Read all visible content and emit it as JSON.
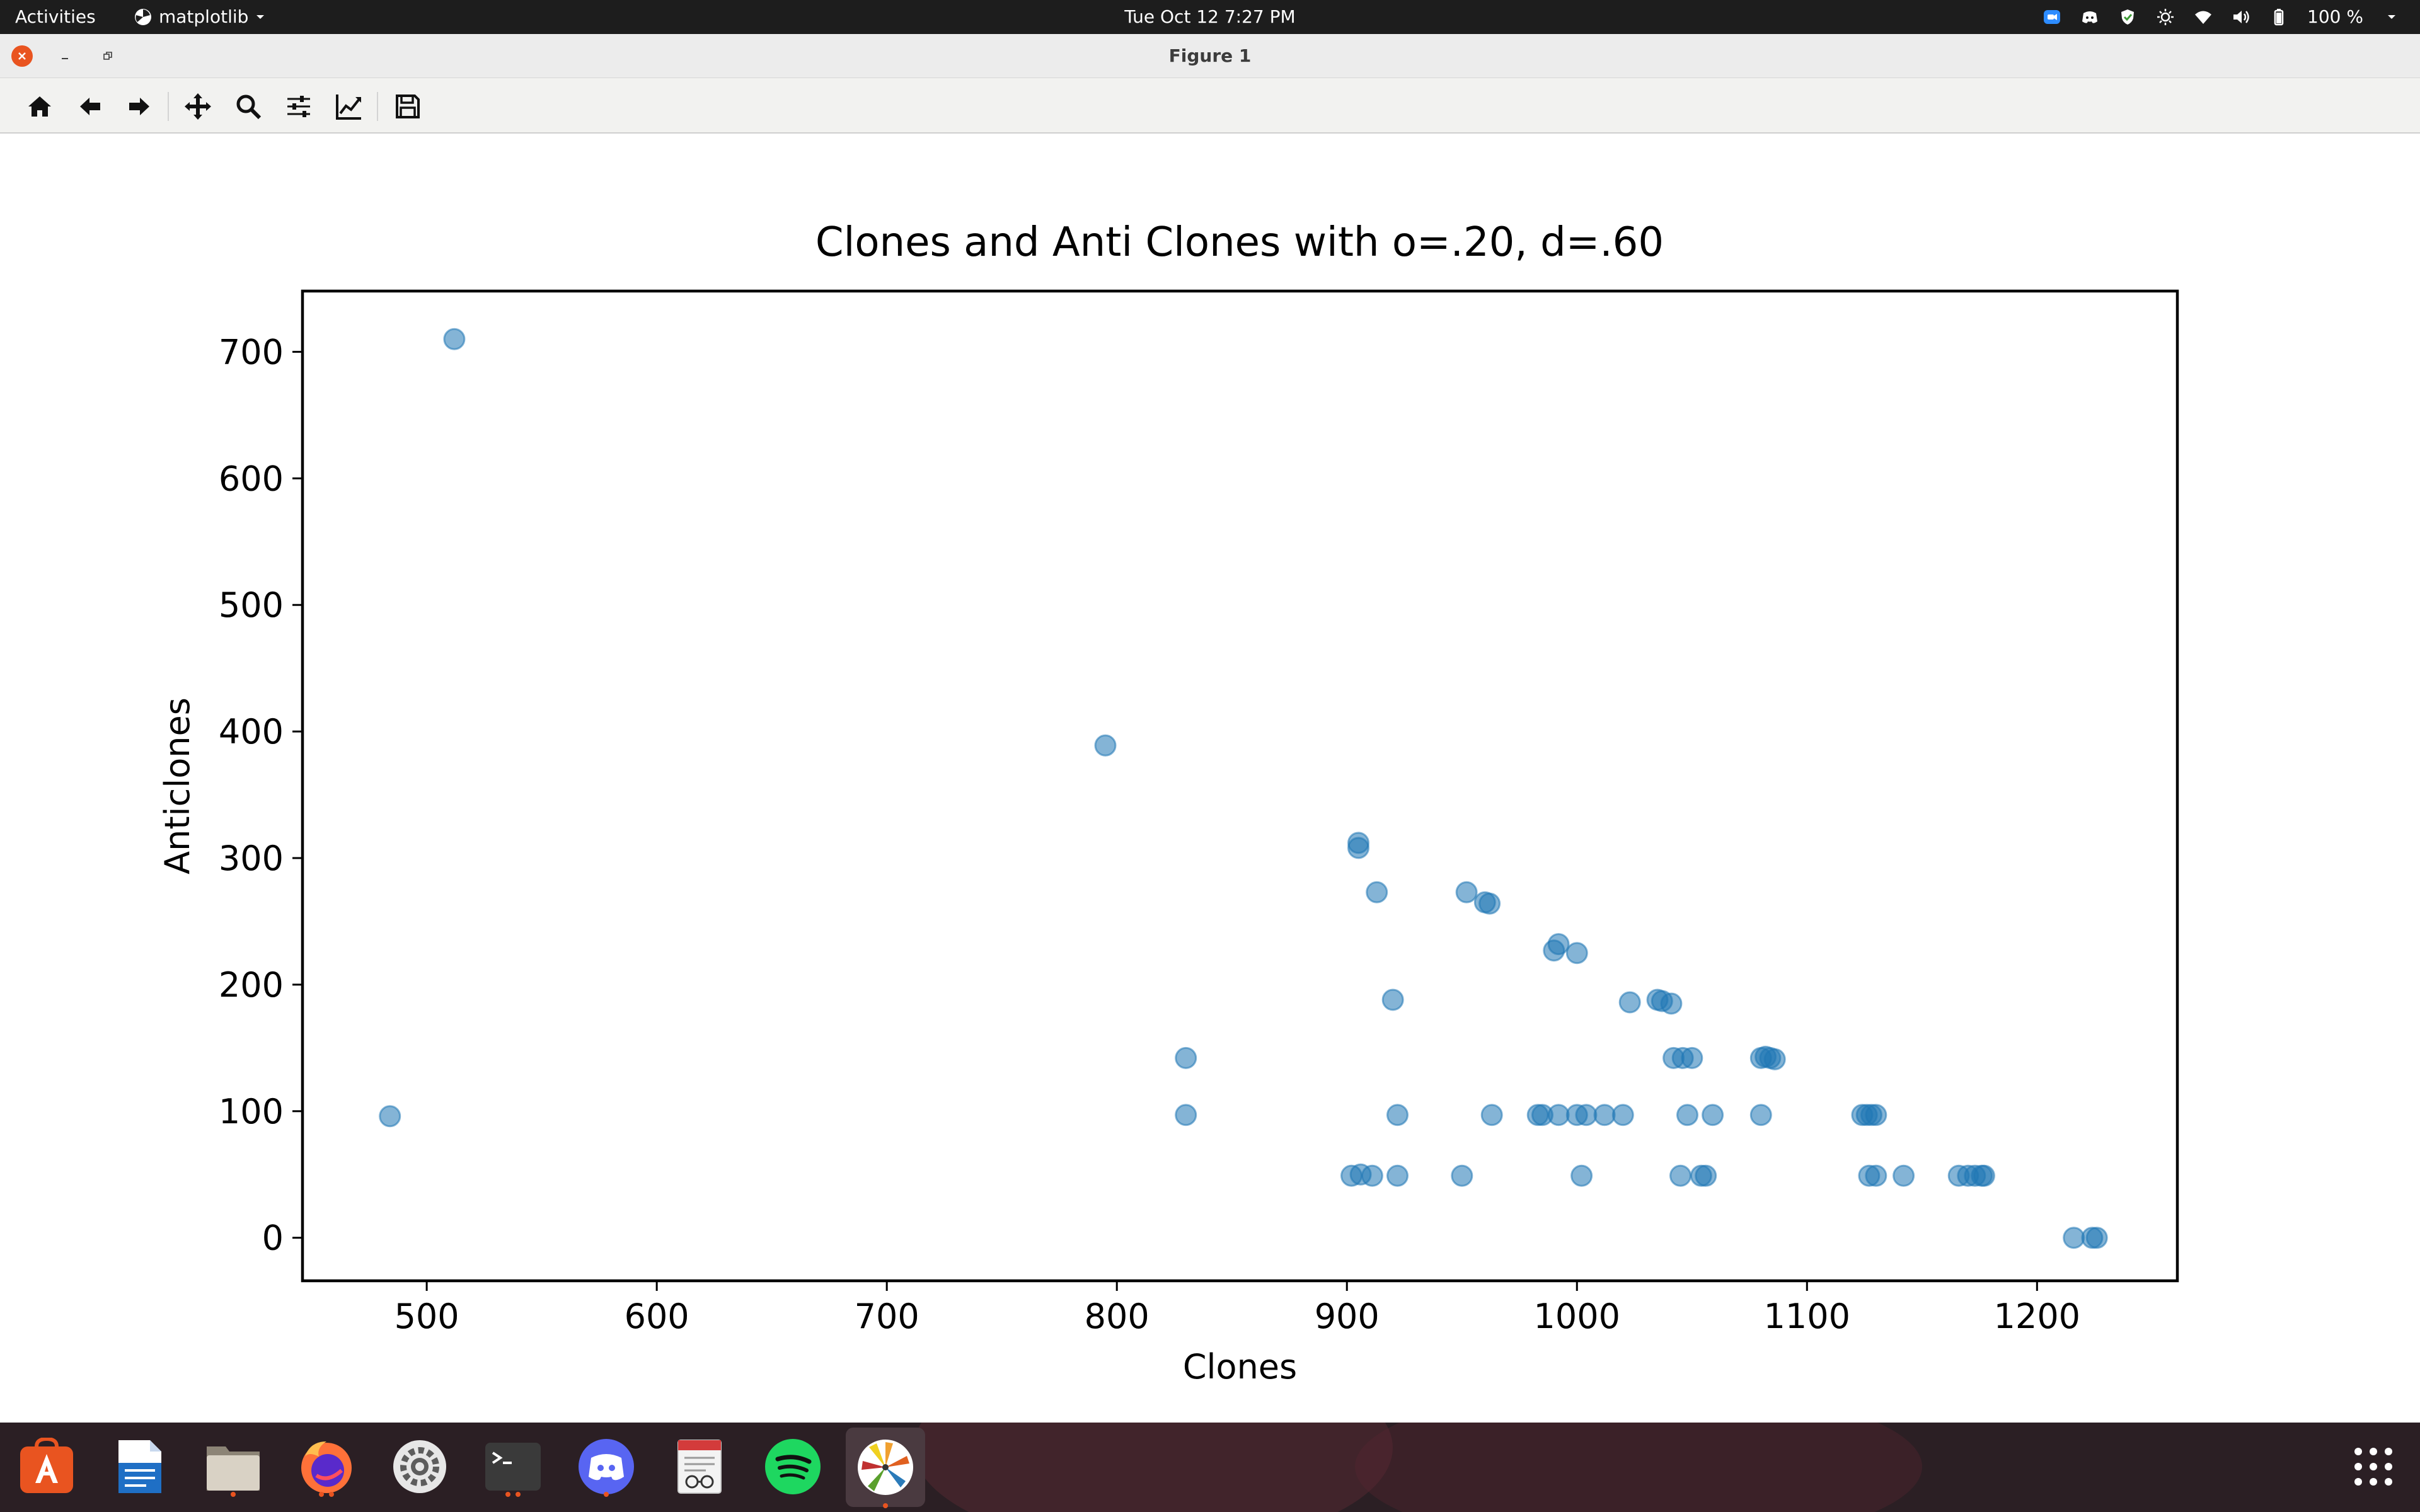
{
  "topbar": {
    "activities": "Activities",
    "app_menu": "matplotlib",
    "clock": "Tue Oct 12  7:27 PM",
    "battery": "100 %"
  },
  "window": {
    "title": "Figure 1"
  },
  "toolbar": {
    "icons": [
      "home-icon",
      "back-arrow-icon",
      "forward-arrow-icon",
      "pan-move-icon",
      "zoom-icon",
      "configure-subplots-icon",
      "edit-axis-icon",
      "save-icon"
    ]
  },
  "chart_data": {
    "type": "scatter",
    "title": "Clones and Anti Clones with o=.20, d=.60",
    "xlabel": "Clones",
    "ylabel": "Anticlones",
    "xlim": [
      446,
      1261
    ],
    "ylim": [
      -34,
      748
    ],
    "xticks": [
      500,
      600,
      700,
      800,
      900,
      1000,
      1100,
      1200
    ],
    "yticks": [
      0,
      100,
      200,
      300,
      400,
      500,
      600,
      700
    ],
    "marker_color": "#1f77b4",
    "alpha": 0.55,
    "grid": false,
    "legend": "none",
    "points": [
      [
        512,
        710
      ],
      [
        484,
        96
      ],
      [
        795,
        389
      ],
      [
        830,
        142
      ],
      [
        830,
        97
      ],
      [
        905,
        312
      ],
      [
        905,
        308
      ],
      [
        913,
        273
      ],
      [
        920,
        188
      ],
      [
        922,
        97
      ],
      [
        902,
        49
      ],
      [
        906,
        50
      ],
      [
        911,
        49
      ],
      [
        922,
        49
      ],
      [
        950,
        49
      ],
      [
        952,
        273
      ],
      [
        960,
        265
      ],
      [
        962,
        264
      ],
      [
        963,
        97
      ],
      [
        983,
        97
      ],
      [
        985,
        97
      ],
      [
        992,
        97
      ],
      [
        990,
        227
      ],
      [
        992,
        232
      ],
      [
        1000,
        225
      ],
      [
        1000,
        97
      ],
      [
        1004,
        97
      ],
      [
        1012,
        97
      ],
      [
        1020,
        97
      ],
      [
        1002,
        49
      ],
      [
        1023,
        186
      ],
      [
        1035,
        188
      ],
      [
        1037,
        187
      ],
      [
        1041,
        185
      ],
      [
        1042,
        142
      ],
      [
        1046,
        142
      ],
      [
        1050,
        142
      ],
      [
        1048,
        97
      ],
      [
        1059,
        97
      ],
      [
        1045,
        49
      ],
      [
        1054,
        49
      ],
      [
        1056,
        49
      ],
      [
        1080,
        142
      ],
      [
        1082,
        143
      ],
      [
        1084,
        142
      ],
      [
        1086,
        141
      ],
      [
        1080,
        97
      ],
      [
        1124,
        97
      ],
      [
        1126,
        97
      ],
      [
        1128,
        97
      ],
      [
        1130,
        97
      ],
      [
        1127,
        49
      ],
      [
        1130,
        49
      ],
      [
        1142,
        49
      ],
      [
        1166,
        49
      ],
      [
        1170,
        49
      ],
      [
        1173,
        49
      ],
      [
        1176,
        49
      ],
      [
        1177,
        49
      ],
      [
        1216,
        0
      ],
      [
        1224,
        0
      ],
      [
        1226,
        0
      ]
    ]
  }
}
